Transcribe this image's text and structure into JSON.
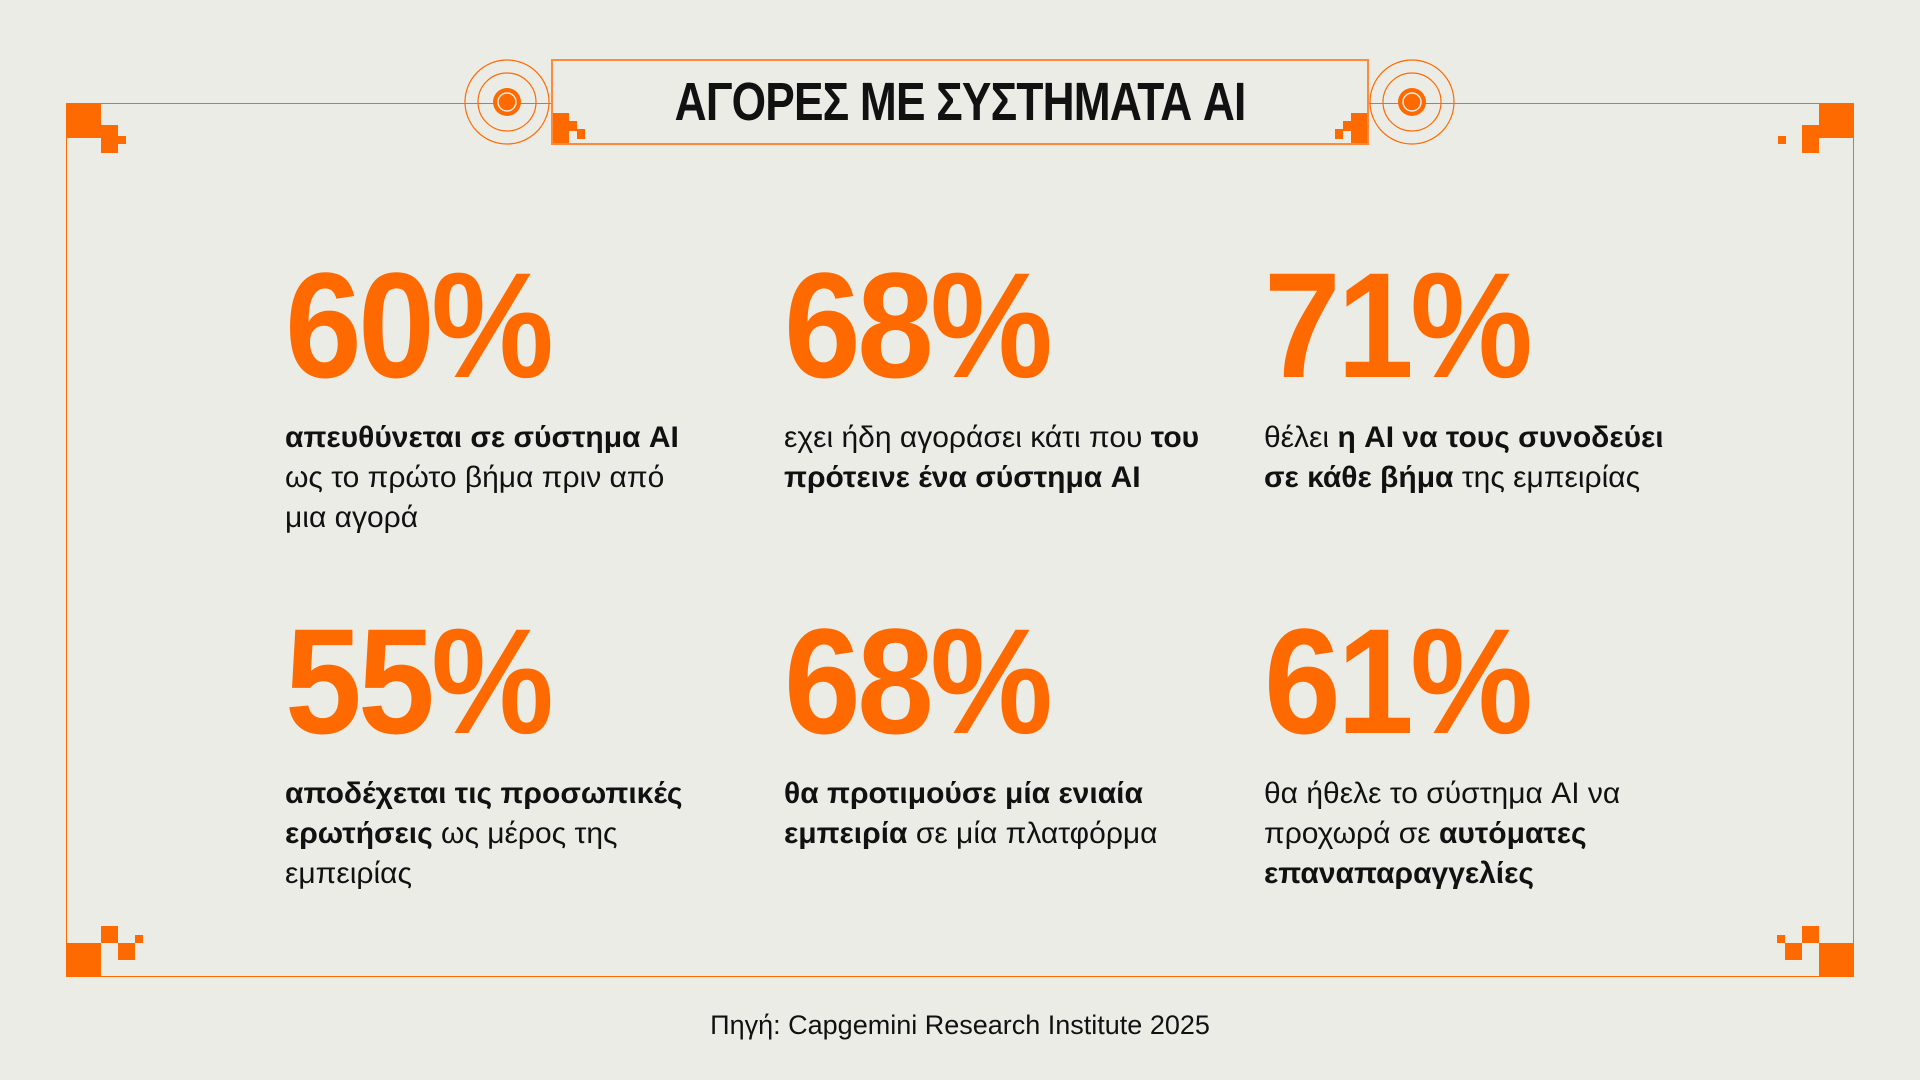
{
  "title": "ΑΓΟΡΕΣ ΜΕ ΣΥΣΤΗΜΑΤΑ AI",
  "accent_color": "#ff6a00",
  "stats": [
    {
      "value": "60%",
      "parts": [
        {
          "t": "απευθύνεται σε σύστημα AI",
          "b": true
        },
        {
          "t": " ως το πρώτο βήμα πριν από μια αγορά",
          "b": false
        }
      ]
    },
    {
      "value": "68%",
      "parts": [
        {
          "t": "εχει ήδη αγοράσει κάτι που ",
          "b": false
        },
        {
          "t": "του πρότεινε ένα σύστημα AI",
          "b": true
        }
      ]
    },
    {
      "value": "71%",
      "parts": [
        {
          "t": "θέλει ",
          "b": false
        },
        {
          "t": "η AI να τους συνοδεύει σε κάθε βήμα",
          "b": true
        },
        {
          "t": " της εμπειρίας",
          "b": false
        }
      ]
    },
    {
      "value": "55%",
      "parts": [
        {
          "t": "αποδέχεται τις προσωπικές ερωτήσεις",
          "b": true
        },
        {
          "t": " ως μέρος της εμπειρίας",
          "b": false
        }
      ]
    },
    {
      "value": "68%",
      "parts": [
        {
          "t": "θα προτιμούσε μία ενιαία εμπειρία",
          "b": true
        },
        {
          "t": " σε μία πλατφόρμα",
          "b": false
        }
      ]
    },
    {
      "value": "61%",
      "parts": [
        {
          "t": "θα ήθελε το σύστημα AI να προχωρά σε ",
          "b": false
        },
        {
          "t": "αυτόματες επαναπαραγγελίες",
          "b": true
        }
      ]
    }
  ],
  "source": "Πηγή: Capgemini Research Institute 2025"
}
